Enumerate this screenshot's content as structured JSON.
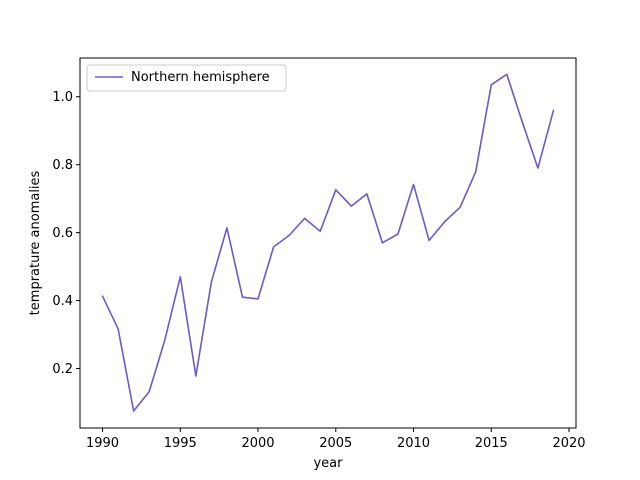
{
  "chart_data": {
    "type": "line",
    "x": [
      1990,
      1991,
      1992,
      1993,
      1994,
      1995,
      1996,
      1997,
      1998,
      1999,
      2000,
      2001,
      2002,
      2003,
      2004,
      2005,
      2006,
      2007,
      2008,
      2009,
      2010,
      2011,
      2012,
      2013,
      2014,
      2015,
      2016,
      2017,
      2018,
      2019
    ],
    "series": [
      {
        "name": "Northern hemisphere",
        "color": "#6a5acd",
        "values": [
          0.413,
          0.317,
          0.075,
          0.132,
          0.283,
          0.47,
          0.178,
          0.455,
          0.614,
          0.41,
          0.405,
          0.558,
          0.592,
          0.642,
          0.604,
          0.726,
          0.678,
          0.714,
          0.57,
          0.596,
          0.742,
          0.577,
          0.632,
          0.675,
          0.779,
          1.035,
          1.066,
          0.925,
          0.79,
          0.96
        ]
      }
    ],
    "xlabel": "year",
    "ylabel": "temprature anomalies",
    "xlim": [
      1988.55,
      2020.45
    ],
    "ylim": [
      0.025,
      1.114
    ],
    "x_ticks": [
      1990,
      1995,
      2000,
      2005,
      2010,
      2015,
      2020
    ],
    "x_tick_labels": [
      "1990",
      "1995",
      "2000",
      "2005",
      "2010",
      "2015",
      "2020"
    ],
    "y_ticks": [
      0.2,
      0.4,
      0.6,
      0.8,
      1.0
    ],
    "y_tick_labels": [
      "0.2",
      "0.4",
      "0.6",
      "0.8",
      "1.0"
    ],
    "grid": false,
    "legend_position": "top-left"
  }
}
